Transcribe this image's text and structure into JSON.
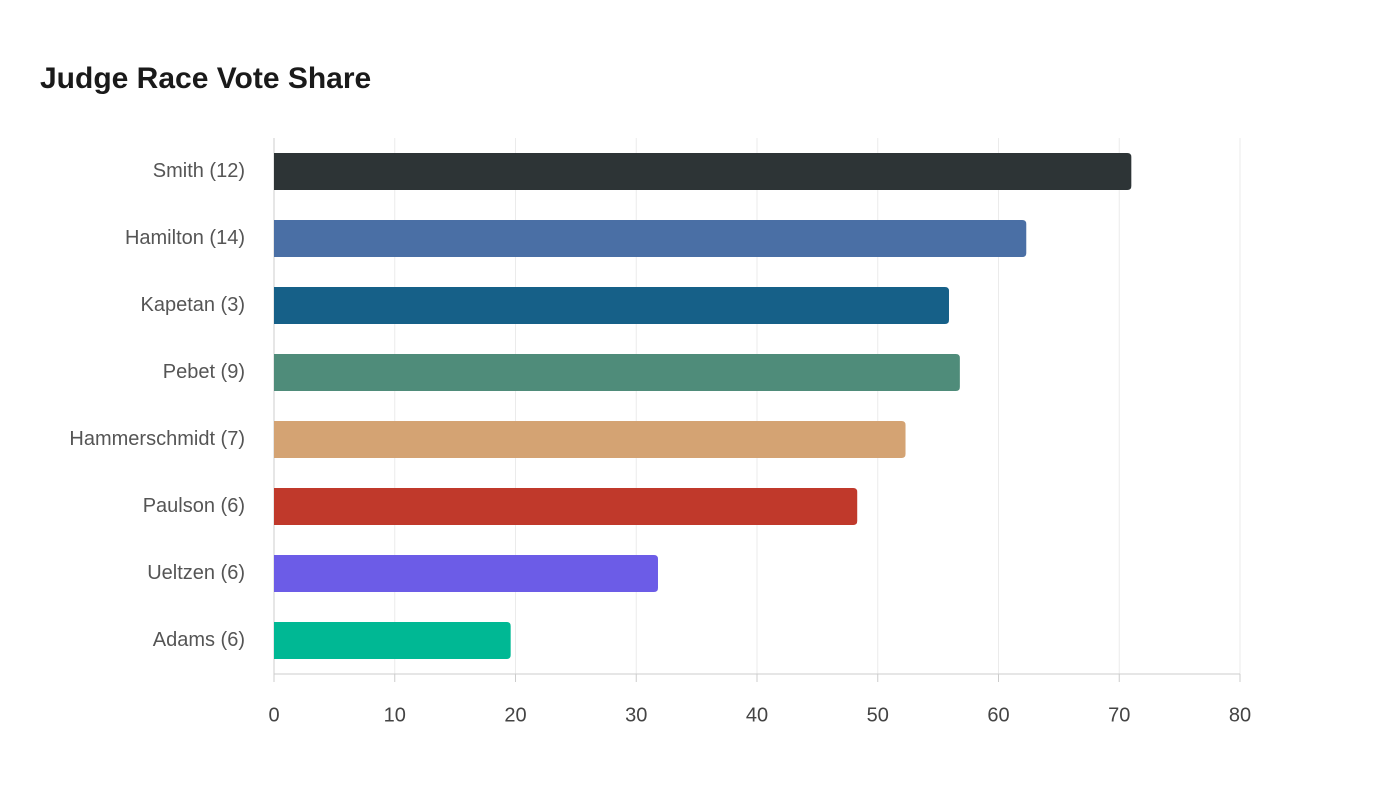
{
  "chart_data": {
    "type": "bar",
    "orientation": "horizontal",
    "title": "Judge Race Vote Share",
    "categories": [
      "Smith (12)",
      "Hamilton (14)",
      "Kapetan (3)",
      "Pebet (9)",
      "Hammerschmidt (7)",
      "Paulson (6)",
      "Ueltzen (6)",
      "Adams (6)"
    ],
    "values": [
      71,
      62.3,
      55.9,
      56.8,
      52.3,
      48.3,
      31.8,
      19.6
    ],
    "colors": [
      "#2d3436",
      "#4a6fa5",
      "#166088",
      "#4f8c7a",
      "#d4a373",
      "#c0392b",
      "#6c5ce7",
      "#00b894"
    ],
    "xlim": [
      0,
      80
    ],
    "xticks": [
      0,
      10,
      20,
      30,
      40,
      50,
      60,
      70,
      80
    ],
    "grid": true
  }
}
